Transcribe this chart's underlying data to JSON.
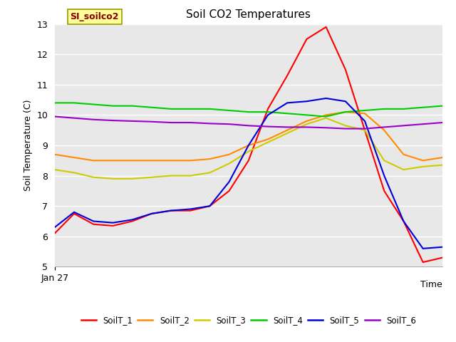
{
  "title": "Soil CO2 Temperatures",
  "xlabel": "Time",
  "ylabel": "Soil Temperature (C)",
  "ylim": [
    5.0,
    13.0
  ],
  "yticks": [
    5.0,
    6.0,
    7.0,
    8.0,
    9.0,
    10.0,
    11.0,
    12.0,
    13.0
  ],
  "xticklabel": "Jan 27",
  "annotation": "SI_soilco2",
  "annotation_color": "#8B0000",
  "annotation_bg": "#FFFF99",
  "background_color": "#E8E8E8",
  "series": {
    "SoilT_1": {
      "color": "#FF0000",
      "x": [
        0,
        1,
        2,
        3,
        4,
        5,
        6,
        7,
        8,
        9,
        10,
        11,
        12,
        13,
        14,
        15,
        16,
        17,
        18,
        19,
        20
      ],
      "y": [
        6.1,
        6.75,
        6.4,
        6.35,
        6.5,
        6.75,
        6.85,
        6.85,
        7.0,
        7.5,
        8.5,
        10.2,
        11.3,
        12.5,
        12.9,
        11.5,
        9.5,
        7.5,
        6.5,
        5.15,
        5.3
      ]
    },
    "SoilT_2": {
      "color": "#FF8C00",
      "x": [
        0,
        1,
        2,
        3,
        4,
        5,
        6,
        7,
        8,
        9,
        10,
        11,
        12,
        13,
        14,
        15,
        16,
        17,
        18,
        19,
        20
      ],
      "y": [
        8.7,
        8.6,
        8.5,
        8.5,
        8.5,
        8.5,
        8.5,
        8.5,
        8.55,
        8.7,
        9.0,
        9.2,
        9.5,
        9.8,
        10.0,
        10.1,
        10.05,
        9.5,
        8.7,
        8.5,
        8.6
      ]
    },
    "SoilT_3": {
      "color": "#CCCC00",
      "x": [
        0,
        1,
        2,
        3,
        4,
        5,
        6,
        7,
        8,
        9,
        10,
        11,
        12,
        13,
        14,
        15,
        16,
        17,
        18,
        19,
        20
      ],
      "y": [
        8.2,
        8.1,
        7.95,
        7.9,
        7.9,
        7.95,
        8.0,
        8.0,
        8.1,
        8.4,
        8.8,
        9.1,
        9.4,
        9.7,
        9.9,
        9.65,
        9.5,
        8.5,
        8.2,
        8.3,
        8.35
      ]
    },
    "SoilT_4": {
      "color": "#00CC00",
      "x": [
        0,
        1,
        2,
        3,
        4,
        5,
        6,
        7,
        8,
        9,
        10,
        11,
        12,
        13,
        14,
        15,
        16,
        17,
        18,
        19,
        20
      ],
      "y": [
        10.4,
        10.4,
        10.35,
        10.3,
        10.3,
        10.25,
        10.2,
        10.2,
        10.2,
        10.15,
        10.1,
        10.1,
        10.05,
        10.0,
        9.95,
        10.1,
        10.15,
        10.2,
        10.2,
        10.25,
        10.3
      ]
    },
    "SoilT_5": {
      "color": "#0000DD",
      "x": [
        0,
        1,
        2,
        3,
        4,
        5,
        6,
        7,
        8,
        9,
        10,
        11,
        12,
        13,
        14,
        15,
        16,
        17,
        18,
        19,
        20
      ],
      "y": [
        6.3,
        6.8,
        6.5,
        6.45,
        6.55,
        6.75,
        6.85,
        6.9,
        7.0,
        7.8,
        9.0,
        10.0,
        10.4,
        10.45,
        10.55,
        10.45,
        9.8,
        8.0,
        6.5,
        5.6,
        5.65
      ]
    },
    "SoilT_6": {
      "color": "#9900CC",
      "x": [
        0,
        1,
        2,
        3,
        4,
        5,
        6,
        7,
        8,
        9,
        10,
        11,
        12,
        13,
        14,
        15,
        16,
        17,
        18,
        19,
        20
      ],
      "y": [
        9.95,
        9.9,
        9.85,
        9.82,
        9.8,
        9.78,
        9.75,
        9.75,
        9.72,
        9.7,
        9.65,
        9.62,
        9.6,
        9.6,
        9.58,
        9.55,
        9.55,
        9.6,
        9.65,
        9.7,
        9.75
      ]
    }
  }
}
